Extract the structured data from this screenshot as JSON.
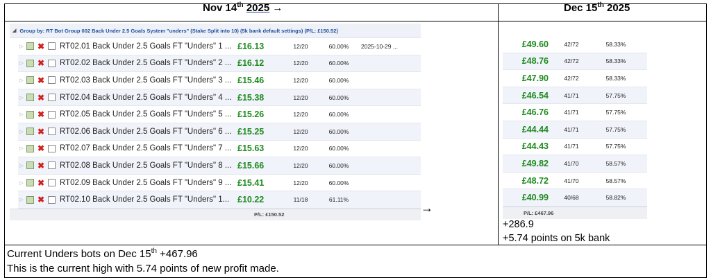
{
  "header": {
    "left": {
      "month_day": "Nov 14",
      "suffix": "th",
      "year": "2025",
      "arrow": "→"
    },
    "right": {
      "month_day": "Dec 15",
      "suffix": "th",
      "year": "2025"
    }
  },
  "left_panel": {
    "group_label": "Group by: RT Bot Group 002 Back Under 2.5 Goals System \"unders\" (Stake Split into 10) (5k bank default settings) (P/L: £150.52)",
    "rows": [
      {
        "name": "RT02.01 Back Under 2.5 Goals FT \"Unders\" 1 ...",
        "value": "£16.13",
        "record": "12/20",
        "pct": "60.00%",
        "date": "2025-10-29 ..."
      },
      {
        "name": "RT02.02 Back Under 2.5 Goals FT \"Unders\" 2 ...",
        "value": "£16.12",
        "record": "12/20",
        "pct": "60.00%",
        "date": ""
      },
      {
        "name": "RT02.03 Back Under 2.5 Goals FT \"Unders\" 3 ...",
        "value": "£15.46",
        "record": "12/20",
        "pct": "60.00%",
        "date": ""
      },
      {
        "name": "RT02.04 Back Under 2.5 Goals FT \"Unders\" 4 ...",
        "value": "£15.38",
        "record": "12/20",
        "pct": "60.00%",
        "date": ""
      },
      {
        "name": "RT02.05 Back Under 2.5 Goals FT \"Unders\" 5 ...",
        "value": "£15.26",
        "record": "12/20",
        "pct": "60.00%",
        "date": ""
      },
      {
        "name": "RT02.06 Back Under 2.5 Goals FT \"Unders\" 6 ...",
        "value": "£15.25",
        "record": "12/20",
        "pct": "60.00%",
        "date": ""
      },
      {
        "name": "RT02.07 Back Under 2.5 Goals FT \"Unders\" 7 ...",
        "value": "£15.63",
        "record": "12/20",
        "pct": "60.00%",
        "date": ""
      },
      {
        "name": "RT02.08 Back Under 2.5 Goals FT \"Unders\" 8 ...",
        "value": "£15.66",
        "record": "12/20",
        "pct": "60.00%",
        "date": ""
      },
      {
        "name": "RT02.09 Back Under 2.5 Goals FT \"Unders\" 9 ...",
        "value": "£15.41",
        "record": "12/20",
        "pct": "60.00%",
        "date": ""
      },
      {
        "name": "RT02.10 Back Under 2.5 Goals FT \"Unders\" 1...",
        "value": "£10.22",
        "record": "11/18",
        "pct": "61.11%",
        "date": ""
      }
    ],
    "total": "P/L: £150.52",
    "arrow": "→"
  },
  "right_panel": {
    "rows": [
      {
        "value": "£49.60",
        "record": "42/72",
        "pct": "58.33%"
      },
      {
        "value": "£48.76",
        "record": "42/72",
        "pct": "58.33%"
      },
      {
        "value": "£47.90",
        "record": "42/72",
        "pct": "58.33%"
      },
      {
        "value": "£46.54",
        "record": "41/71",
        "pct": "57.75%"
      },
      {
        "value": "£46.76",
        "record": "41/71",
        "pct": "57.75%"
      },
      {
        "value": "£44.44",
        "record": "41/71",
        "pct": "57.75%"
      },
      {
        "value": "£44.43",
        "record": "41/71",
        "pct": "57.75%"
      },
      {
        "value": "£49.82",
        "record": "41/70",
        "pct": "58.57%"
      },
      {
        "value": "£48.72",
        "record": "41/70",
        "pct": "58.57%"
      },
      {
        "value": "£40.99",
        "record": "40/68",
        "pct": "58.82%"
      }
    ],
    "total": "P/L: £467.96",
    "note1": "+286.9",
    "note2": "+5.74 points on 5k bank"
  },
  "footer": {
    "line1_prefix": "Current Unders bots on Dec 15",
    "line1_suffix": "th",
    "line1_value": " +467.96",
    "line2": "This is the current high with 5.74 points of new profit made."
  },
  "colors": {
    "profit_green": "#1e8a1e",
    "delete_red": "#d02020",
    "group_blue": "#1f4f9f"
  }
}
